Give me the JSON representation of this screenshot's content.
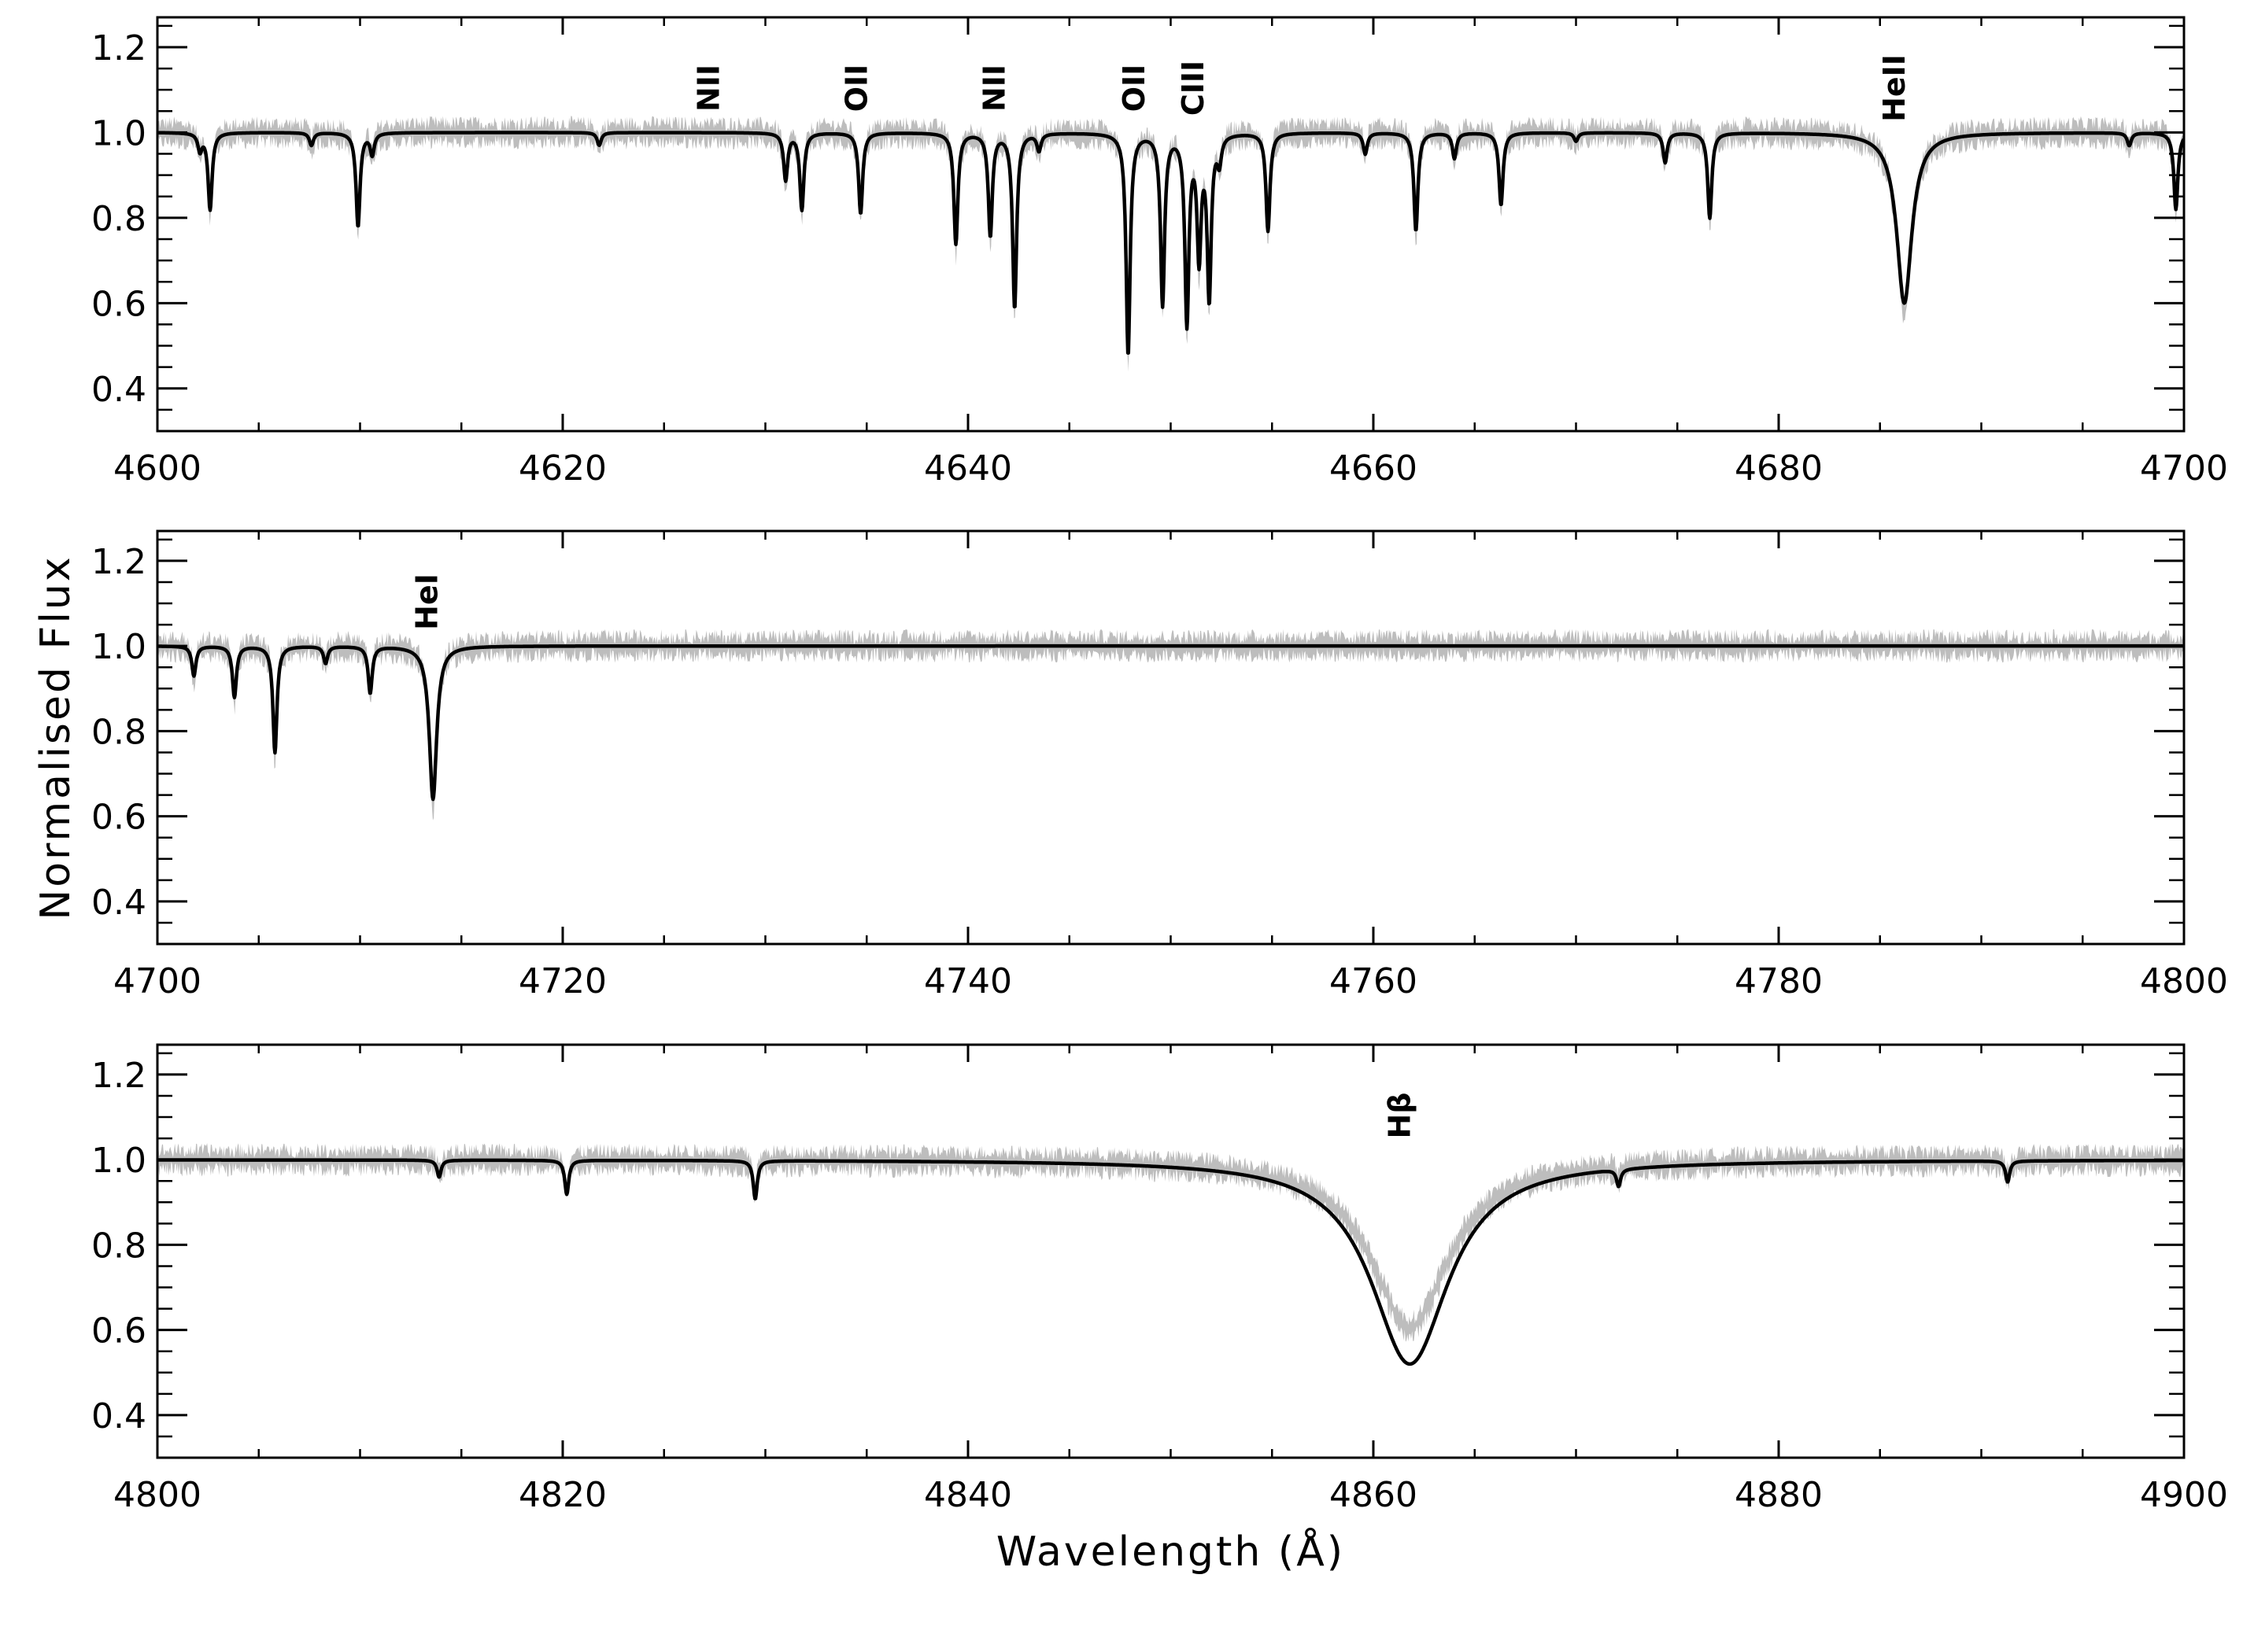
{
  "chart_data": {
    "type": "line",
    "ylabel": "Normalised Flux",
    "xlabel": "Wavelength (Å)",
    "colors": {
      "observed": "#bdbdbd",
      "model": "#000000",
      "axes": "#000000"
    },
    "panels": [
      {
        "xlim": [
          4600,
          4700
        ],
        "ylim": [
          0.3,
          1.27
        ],
        "xticks": [
          4600,
          4620,
          4640,
          4660,
          4680,
          4700
        ],
        "yticks": [
          0.4,
          0.6,
          0.8,
          1.0,
          1.2
        ],
        "xtick_labels": [
          "4600",
          "4620",
          "4640",
          "4660",
          "4680",
          "4700"
        ],
        "ytick_labels": [
          "0.4",
          "0.6",
          "0.8",
          "1.0",
          "1.2"
        ],
        "annotations": [
          {
            "text": "NII",
            "x": 4627.2
          },
          {
            "text": "OII",
            "x": 4634.5
          },
          {
            "text": "NII",
            "x": 4641.3
          },
          {
            "text": "OII",
            "x": 4648.2
          },
          {
            "text": "CIII",
            "x": 4651.1
          },
          {
            "text": "HeII",
            "x": 4685.7
          }
        ],
        "model_lines": [
          {
            "x": 4602.1,
            "depth": 0.04,
            "width": 0.12
          },
          {
            "x": 4602.6,
            "depth": 0.18,
            "width": 0.12
          },
          {
            "x": 4607.6,
            "depth": 0.03,
            "width": 0.12
          },
          {
            "x": 4609.9,
            "depth": 0.22,
            "width": 0.12
          },
          {
            "x": 4610.6,
            "depth": 0.05,
            "width": 0.12
          },
          {
            "x": 4621.8,
            "depth": 0.03,
            "width": 0.12
          },
          {
            "x": 4631.0,
            "depth": 0.11,
            "width": 0.12
          },
          {
            "x": 4631.8,
            "depth": 0.18,
            "width": 0.12
          },
          {
            "x": 4634.7,
            "depth": 0.19,
            "width": 0.12
          },
          {
            "x": 4639.4,
            "depth": 0.26,
            "width": 0.12
          },
          {
            "x": 4641.1,
            "depth": 0.24,
            "width": 0.12
          },
          {
            "x": 4642.3,
            "depth": 0.41,
            "width": 0.12
          },
          {
            "x": 4643.5,
            "depth": 0.04,
            "width": 0.12
          },
          {
            "x": 4647.9,
            "depth": 0.52,
            "width": 0.12
          },
          {
            "x": 4649.6,
            "depth": 0.4,
            "width": 0.12
          },
          {
            "x": 4650.8,
            "depth": 0.44,
            "width": 0.12
          },
          {
            "x": 4651.4,
            "depth": 0.28,
            "width": 0.12
          },
          {
            "x": 4651.9,
            "depth": 0.38,
            "width": 0.12
          },
          {
            "x": 4652.4,
            "depth": 0.06,
            "width": 0.12
          },
          {
            "x": 4654.8,
            "depth": 0.23,
            "width": 0.12
          },
          {
            "x": 4659.6,
            "depth": 0.05,
            "width": 0.12
          },
          {
            "x": 4662.1,
            "depth": 0.23,
            "width": 0.12
          },
          {
            "x": 4664.0,
            "depth": 0.06,
            "width": 0.12
          },
          {
            "x": 4666.3,
            "depth": 0.17,
            "width": 0.12
          },
          {
            "x": 4670.0,
            "depth": 0.02,
            "width": 0.12
          },
          {
            "x": 4674.4,
            "depth": 0.07,
            "width": 0.12
          },
          {
            "x": 4676.6,
            "depth": 0.2,
            "width": 0.12
          },
          {
            "x": 4686.2,
            "depth": 0.4,
            "width": 0.45
          },
          {
            "x": 4697.3,
            "depth": 0.03,
            "width": 0.12
          },
          {
            "x": 4699.6,
            "depth": 0.18,
            "width": 0.12
          }
        ]
      },
      {
        "xlim": [
          4700,
          4800
        ],
        "ylim": [
          0.3,
          1.27
        ],
        "xticks": [
          4700,
          4720,
          4740,
          4760,
          4780,
          4800
        ],
        "yticks": [
          0.4,
          0.6,
          0.8,
          1.0,
          1.2
        ],
        "xtick_labels": [
          "4700",
          "4720",
          "4740",
          "4760",
          "4780",
          "4800"
        ],
        "ytick_labels": [
          "0.4",
          "0.6",
          "0.8",
          "1.0",
          "1.2"
        ],
        "annotations": [
          {
            "text": "HeI",
            "x": 4713.3
          }
        ],
        "model_lines": [
          {
            "x": 4701.8,
            "depth": 0.07,
            "width": 0.12
          },
          {
            "x": 4703.8,
            "depth": 0.12,
            "width": 0.12
          },
          {
            "x": 4705.8,
            "depth": 0.25,
            "width": 0.12
          },
          {
            "x": 4708.3,
            "depth": 0.04,
            "width": 0.12
          },
          {
            "x": 4710.5,
            "depth": 0.11,
            "width": 0.12
          },
          {
            "x": 4713.6,
            "depth": 0.36,
            "width": 0.22
          }
        ]
      },
      {
        "xlim": [
          4800,
          4900
        ],
        "ylim": [
          0.3,
          1.27
        ],
        "xticks": [
          4800,
          4820,
          4840,
          4860,
          4880,
          4900
        ],
        "yticks": [
          0.4,
          0.6,
          0.8,
          1.0,
          1.2
        ],
        "xtick_labels": [
          "4800",
          "4820",
          "4840",
          "4860",
          "4880",
          "4900"
        ],
        "ytick_labels": [
          "0.4",
          "0.6",
          "0.8",
          "1.0",
          "1.2"
        ],
        "annotations": [
          {
            "text": "Hβ",
            "x": 4861.3
          }
        ],
        "broad_line": {
          "x": 4861.8,
          "depth": 0.48,
          "width": 2.5
        },
        "model_lines": [
          {
            "x": 4813.9,
            "depth": 0.04,
            "width": 0.12
          },
          {
            "x": 4820.2,
            "depth": 0.08,
            "width": 0.12
          },
          {
            "x": 4829.5,
            "depth": 0.09,
            "width": 0.12
          },
          {
            "x": 4872.1,
            "depth": 0.04,
            "width": 0.12
          },
          {
            "x": 4891.3,
            "depth": 0.05,
            "width": 0.12
          }
        ]
      }
    ]
  }
}
